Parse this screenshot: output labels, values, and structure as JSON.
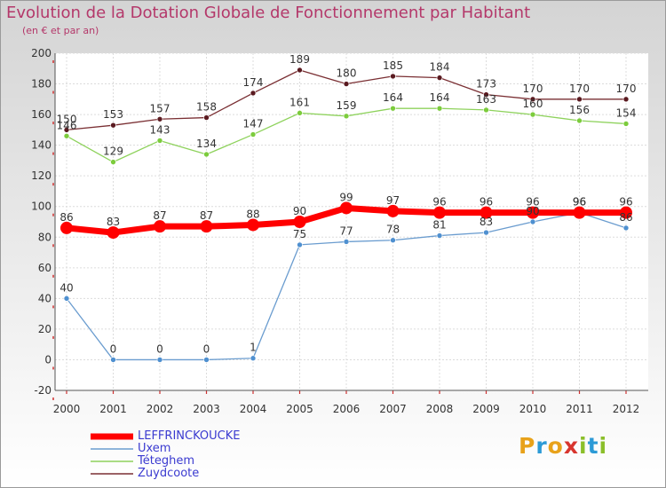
{
  "title": "Evolution de la Dotation Globale de Fonctionnement par Habitant",
  "subtitle": "(en € et par an)",
  "brand": {
    "text": "Proxiti",
    "colors": [
      "#e8a21a",
      "#2c9ad6",
      "#e8a21a",
      "#d8352e",
      "#8bbf2a",
      "#2c9ad6",
      "#8bbf2a"
    ]
  },
  "chart_data": {
    "type": "line",
    "title": "Evolution de la Dotation Globale de Fonctionnement par Habitant",
    "subtitle": "(en € et par an)",
    "xlabel": "",
    "ylabel": "",
    "x": [
      "2000",
      "2001",
      "2002",
      "2003",
      "2004",
      "2005",
      "2006",
      "2007",
      "2008",
      "2009",
      "2010",
      "2011",
      "2012"
    ],
    "ylim": [
      -20,
      200
    ],
    "yticks": [
      -20,
      0,
      20,
      40,
      60,
      80,
      100,
      120,
      140,
      160,
      180,
      200
    ],
    "grid": true,
    "legend_position": "bottom-left",
    "series": [
      {
        "name": "Zuydcoote",
        "color": "#7a2f33",
        "values": [
          150,
          153,
          157,
          158,
          174,
          189,
          180,
          185,
          184,
          173,
          170,
          170,
          170
        ]
      },
      {
        "name": "Téteghem",
        "color": "#8ed25c",
        "values": [
          146,
          129,
          143,
          134,
          147,
          161,
          159,
          164,
          164,
          163,
          160,
          156,
          154
        ]
      },
      {
        "name": "Uxem",
        "color": "#6a9ccf",
        "values": [
          40,
          0,
          0,
          0,
          1,
          75,
          77,
          78,
          81,
          83,
          90,
          96,
          86
        ]
      },
      {
        "name": "LEFFRINCKOUCKE",
        "color": "#ff0000",
        "values": [
          86,
          83,
          87,
          87,
          88,
          90,
          99,
          97,
          96,
          96,
          96,
          96,
          96
        ]
      }
    ],
    "legend": [
      "LEFFRINCKOUCKE",
      "Uxem",
      "Téteghem",
      "Zuydcoote"
    ]
  }
}
